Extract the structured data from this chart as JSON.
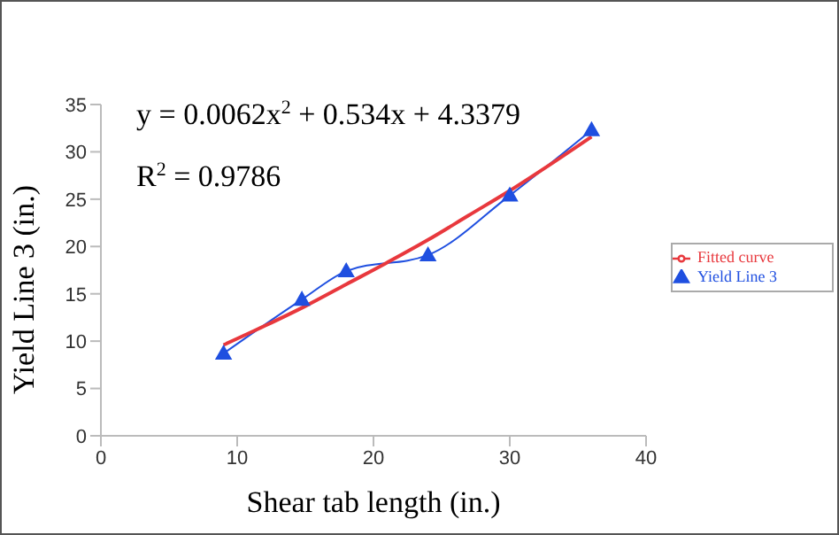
{
  "chart_data": {
    "type": "line",
    "xlabel": "Shear tab length (in.)",
    "ylabel": "Yield Line 3 (in.)",
    "annotations": [
      "y = 0.0062x$^{2}$ + 0.534x + 4.3379",
      "R$^{2}$ = 0.9786"
    ],
    "xlim": [
      0,
      40
    ],
    "xticks": [
      0,
      10,
      20,
      30,
      40
    ],
    "ylim": [
      0,
      35
    ],
    "yticks": [
      0,
      5,
      10,
      15,
      20,
      25,
      30,
      35
    ],
    "grid": false,
    "legend": "right",
    "series": [
      {
        "name": "Yield Line 3",
        "color": "#1f4fe0",
        "marker": "triangle",
        "x": [
          9,
          14.75,
          18,
          24,
          30,
          36
        ],
        "values": [
          8.7,
          14.4,
          17.4,
          19.1,
          25.4,
          32.3
        ]
      },
      {
        "name": "Fitted curve",
        "color": "#e8383d",
        "marker": "none",
        "x": [
          9,
          12,
          15,
          18,
          21,
          24,
          27,
          30,
          33,
          36
        ],
        "values": [
          9.6,
          11.6,
          13.7,
          16.0,
          18.3,
          20.7,
          23.3,
          25.9,
          28.7,
          31.6
        ]
      }
    ]
  }
}
